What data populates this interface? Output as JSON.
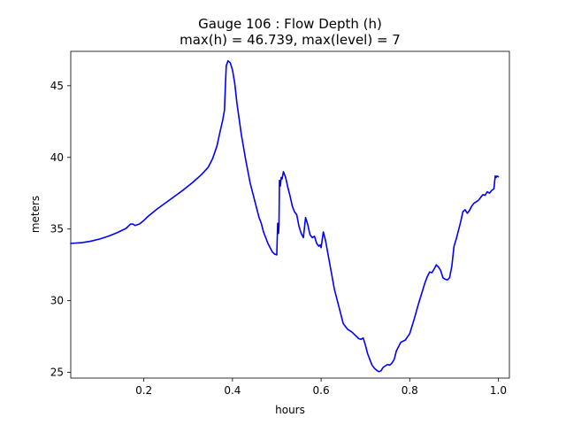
{
  "chart_data": {
    "type": "line",
    "title_line1": "Gauge 106 : Flow Depth (h)",
    "title_line2": "max(h) =  46.739,    max(level) = 7",
    "xlabel": "hours",
    "ylabel": "meters",
    "xlim": [
      0.035,
      1.025
    ],
    "ylim": [
      24.6,
      47.4
    ],
    "xticks": [
      0.2,
      0.4,
      0.6,
      0.8,
      1.0
    ],
    "xtick_labels": [
      "0.2",
      "0.4",
      "0.6",
      "0.8",
      "1.0"
    ],
    "yticks": [
      25,
      30,
      35,
      40,
      45
    ],
    "ytick_labels": [
      "25",
      "30",
      "35",
      "40",
      "45"
    ],
    "grid": false,
    "series": [
      {
        "color": "#0000ff",
        "x": [
          0.035,
          0.06,
          0.08,
          0.1,
          0.12,
          0.14,
          0.16,
          0.17,
          0.175,
          0.18,
          0.185,
          0.19,
          0.2,
          0.21,
          0.23,
          0.25,
          0.27,
          0.29,
          0.31,
          0.33,
          0.345,
          0.355,
          0.365,
          0.372,
          0.378,
          0.382,
          0.384,
          0.386,
          0.39,
          0.395,
          0.4,
          0.405,
          0.41,
          0.42,
          0.43,
          0.44,
          0.45,
          0.46,
          0.465,
          0.47,
          0.48,
          0.49,
          0.495,
          0.5,
          0.502,
          0.504,
          0.505,
          0.506,
          0.508,
          0.51,
          0.512,
          0.515,
          0.52,
          0.525,
          0.53,
          0.535,
          0.54,
          0.545,
          0.55,
          0.555,
          0.56,
          0.565,
          0.57,
          0.575,
          0.58,
          0.585,
          0.59,
          0.595,
          0.598,
          0.6,
          0.605,
          0.61,
          0.62,
          0.63,
          0.64,
          0.65,
          0.66,
          0.67,
          0.68,
          0.685,
          0.69,
          0.695,
          0.7,
          0.705,
          0.71,
          0.715,
          0.72,
          0.725,
          0.73,
          0.735,
          0.74,
          0.745,
          0.75,
          0.755,
          0.76,
          0.765,
          0.77,
          0.78,
          0.79,
          0.8,
          0.81,
          0.82,
          0.83,
          0.835,
          0.84,
          0.845,
          0.85,
          0.855,
          0.86,
          0.865,
          0.87,
          0.875,
          0.88,
          0.885,
          0.89,
          0.895,
          0.9,
          0.905,
          0.91,
          0.915,
          0.92,
          0.925,
          0.93,
          0.935,
          0.94,
          0.945,
          0.95,
          0.955,
          0.96,
          0.965,
          0.97,
          0.975,
          0.98,
          0.985,
          0.99,
          0.993,
          0.995,
          0.997,
          1.0
        ],
        "y": [
          34.0,
          34.05,
          34.15,
          34.3,
          34.5,
          34.75,
          35.05,
          35.35,
          35.35,
          35.25,
          35.3,
          35.35,
          35.6,
          35.9,
          36.4,
          36.85,
          37.3,
          37.75,
          38.25,
          38.8,
          39.3,
          39.9,
          40.8,
          41.8,
          42.6,
          43.3,
          45.0,
          46.4,
          46.739,
          46.6,
          46.1,
          45.2,
          43.8,
          41.6,
          39.8,
          38.2,
          37.0,
          35.8,
          35.4,
          34.8,
          34.0,
          33.4,
          33.25,
          33.2,
          35.4,
          34.7,
          35.3,
          38.4,
          38.0,
          38.6,
          38.5,
          39.0,
          38.6,
          37.9,
          37.3,
          36.6,
          36.2,
          36.0,
          35.2,
          34.7,
          34.4,
          35.8,
          35.3,
          34.6,
          34.4,
          34.5,
          34.0,
          33.8,
          33.9,
          33.7,
          34.8,
          34.2,
          32.5,
          30.8,
          29.6,
          28.4,
          28.0,
          27.8,
          27.5,
          27.35,
          27.3,
          27.4,
          26.9,
          26.3,
          25.9,
          25.5,
          25.3,
          25.15,
          25.05,
          25.1,
          25.35,
          25.45,
          25.55,
          25.5,
          25.65,
          25.9,
          26.5,
          27.1,
          27.25,
          27.7,
          28.7,
          29.8,
          30.8,
          31.3,
          31.7,
          32.0,
          31.95,
          32.2,
          32.5,
          32.35,
          32.1,
          31.6,
          31.5,
          31.45,
          31.6,
          32.4,
          33.8,
          34.3,
          34.9,
          35.5,
          36.2,
          36.35,
          36.1,
          36.3,
          36.6,
          36.8,
          36.9,
          37.0,
          37.2,
          37.4,
          37.35,
          37.6,
          37.5,
          37.7,
          37.8,
          38.7,
          38.6,
          38.7,
          38.65
        ]
      }
    ]
  }
}
